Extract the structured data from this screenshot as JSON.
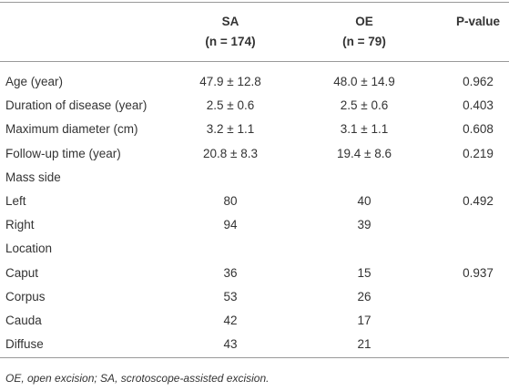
{
  "table": {
    "header": [
      null,
      [
        "SA",
        "(n = 174)"
      ],
      [
        "OE",
        "(n = 79)"
      ],
      [
        "P-value"
      ]
    ],
    "rows": [
      [
        "Age (year)",
        "47.9 ± 12.8",
        "48.0 ± 14.9",
        "0.962"
      ],
      [
        "Duration of disease (year)",
        "2.5 ± 0.6",
        "2.5 ± 0.6",
        "0.403"
      ],
      [
        "Maximum diameter (cm)",
        "3.2 ± 1.1",
        "3.1 ± 1.1",
        "0.608"
      ],
      [
        "Follow-up time (year)",
        "20.8 ± 8.3",
        "19.4 ± 8.6",
        "0.219"
      ],
      [
        "Mass side",
        null,
        null,
        null
      ],
      [
        "Left",
        "80",
        "40",
        "0.492"
      ],
      [
        "Right",
        "94",
        "39",
        null
      ],
      [
        "Location",
        null,
        null,
        null
      ],
      [
        "Caput",
        "36",
        "15",
        "0.937"
      ],
      [
        "Corpus",
        "53",
        "26",
        null
      ],
      [
        "Cauda",
        "42",
        "17",
        null
      ],
      [
        "Diffuse",
        "43",
        "21",
        null
      ]
    ],
    "footnote": "OE, open excision; SA, scrotoscope-assisted excision."
  }
}
